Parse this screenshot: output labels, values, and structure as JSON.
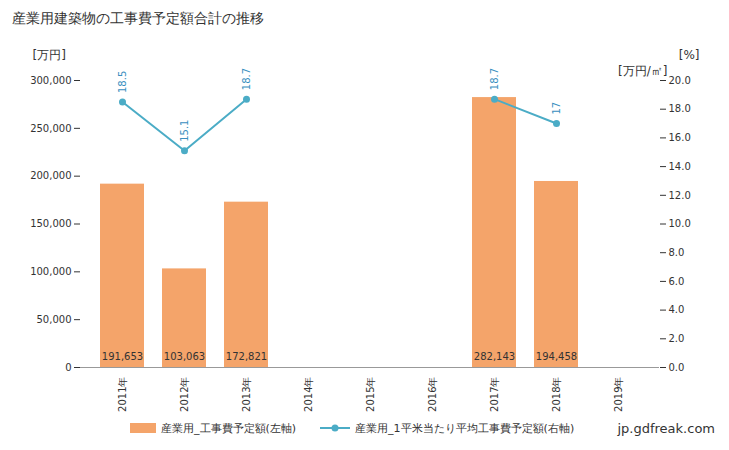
{
  "chart_data": {
    "type": "bar",
    "title": "産業用建築物の工事費予定額合計の推移",
    "categories": [
      "2011年",
      "2012年",
      "2013年",
      "2014年",
      "2015年",
      "2016年",
      "2017年",
      "2018年",
      "2019年"
    ],
    "y_label": "[万円]",
    "y2_label": "[万円/㎡]",
    "y2_unit_label": "[%]",
    "ylim": [
      0,
      300000
    ],
    "yticks": [
      0,
      {
        "value": 50000,
        "label": "50,000"
      },
      {
        "value": 100000,
        "label": "100,000"
      },
      {
        "value": 150000,
        "label": "150,000"
      },
      {
        "value": 200000,
        "label": "200,000"
      },
      {
        "value": 250000,
        "label": "250,000"
      },
      {
        "value": 300000,
        "label": "300,000"
      }
    ],
    "y2lim": [
      0,
      20
    ],
    "y2ticks": [
      {
        "value": 0,
        "label": "0.0"
      },
      {
        "value": 2,
        "label": "2.0"
      },
      {
        "value": 4,
        "label": "4.0"
      },
      {
        "value": 6,
        "label": "6.0"
      },
      {
        "value": 8,
        "label": "8.0"
      },
      {
        "value": 10,
        "label": "10.0"
      },
      {
        "value": 12,
        "label": "12.0"
      },
      {
        "value": 14,
        "label": "14.0"
      },
      {
        "value": 16,
        "label": "16.0"
      },
      {
        "value": 18,
        "label": "18.0"
      },
      {
        "value": 20,
        "label": "20.0"
      }
    ],
    "series": [
      {
        "name": "産業用_工事費予定額(左軸)",
        "type": "bar",
        "color": "#f4a46a",
        "values": [
          191653,
          103063,
          172821,
          null,
          null,
          null,
          282143,
          194458,
          null
        ],
        "data_labels": true,
        "value_labels": [
          "191,653",
          "103,063",
          "172,821",
          null,
          null,
          null,
          "282,143",
          "194,458",
          null
        ]
      },
      {
        "name": "産業用_1平米当たり平均工事費予定額(右軸)",
        "type": "line",
        "axis": "y2",
        "color": "#4bacc6",
        "marker": "circle",
        "values": [
          18.5,
          15.1,
          18.7,
          null,
          null,
          null,
          18.7,
          17,
          null
        ],
        "data_labels": true
      }
    ],
    "legend": "bottom",
    "grid": false,
    "source": "jp.gdfreak.com"
  }
}
